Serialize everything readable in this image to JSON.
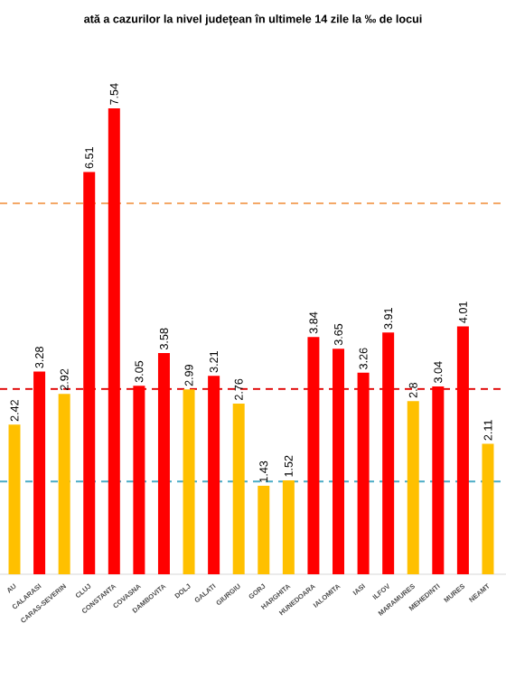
{
  "chart_data": {
    "type": "bar",
    "title": "ată a cazurilor la nivel județean în ultimele 14 zile la ‰ de locui",
    "categories": [
      "AU",
      "CALARASI",
      "CARAS-SEVERIN",
      "CLUJ",
      "CONSTANTA",
      "COVASNA",
      "DAMBOVITA",
      "DOLJ",
      "GALATI",
      "GIURGIU",
      "GORJ",
      "HARGHITA",
      "HUNEDOARA",
      "IALOMITA",
      "IASI",
      "ILFOV",
      "MARAMURES",
      "MEHEDINTI",
      "MURES",
      "NEAMT"
    ],
    "values": [
      2.42,
      3.28,
      2.92,
      6.51,
      7.54,
      3.05,
      3.58,
      2.99,
      3.21,
      2.76,
      1.43,
      1.52,
      3.84,
      3.65,
      3.26,
      3.91,
      2.8,
      3.04,
      4.01,
      2.11
    ],
    "colors": [
      "#ffc000",
      "#ff0000",
      "#ffc000",
      "#ff0000",
      "#ff0000",
      "#ff0000",
      "#ff0000",
      "#ffc000",
      "#ff0000",
      "#ffc000",
      "#ffc000",
      "#ffc000",
      "#ff0000",
      "#ff0000",
      "#ff0000",
      "#ff0000",
      "#ffc000",
      "#ff0000",
      "#ff0000",
      "#ffc000"
    ],
    "data_labels": true,
    "ref_lines": [
      {
        "axis": "y",
        "value": 6,
        "color": "#f4a460",
        "line_style": "dashed"
      },
      {
        "axis": "y",
        "value": 3,
        "color": "#e00000",
        "line_style": "dashed"
      },
      {
        "axis": "y",
        "value": 1.5,
        "color": "#4bacc6",
        "line_style": "dashed"
      }
    ]
  }
}
